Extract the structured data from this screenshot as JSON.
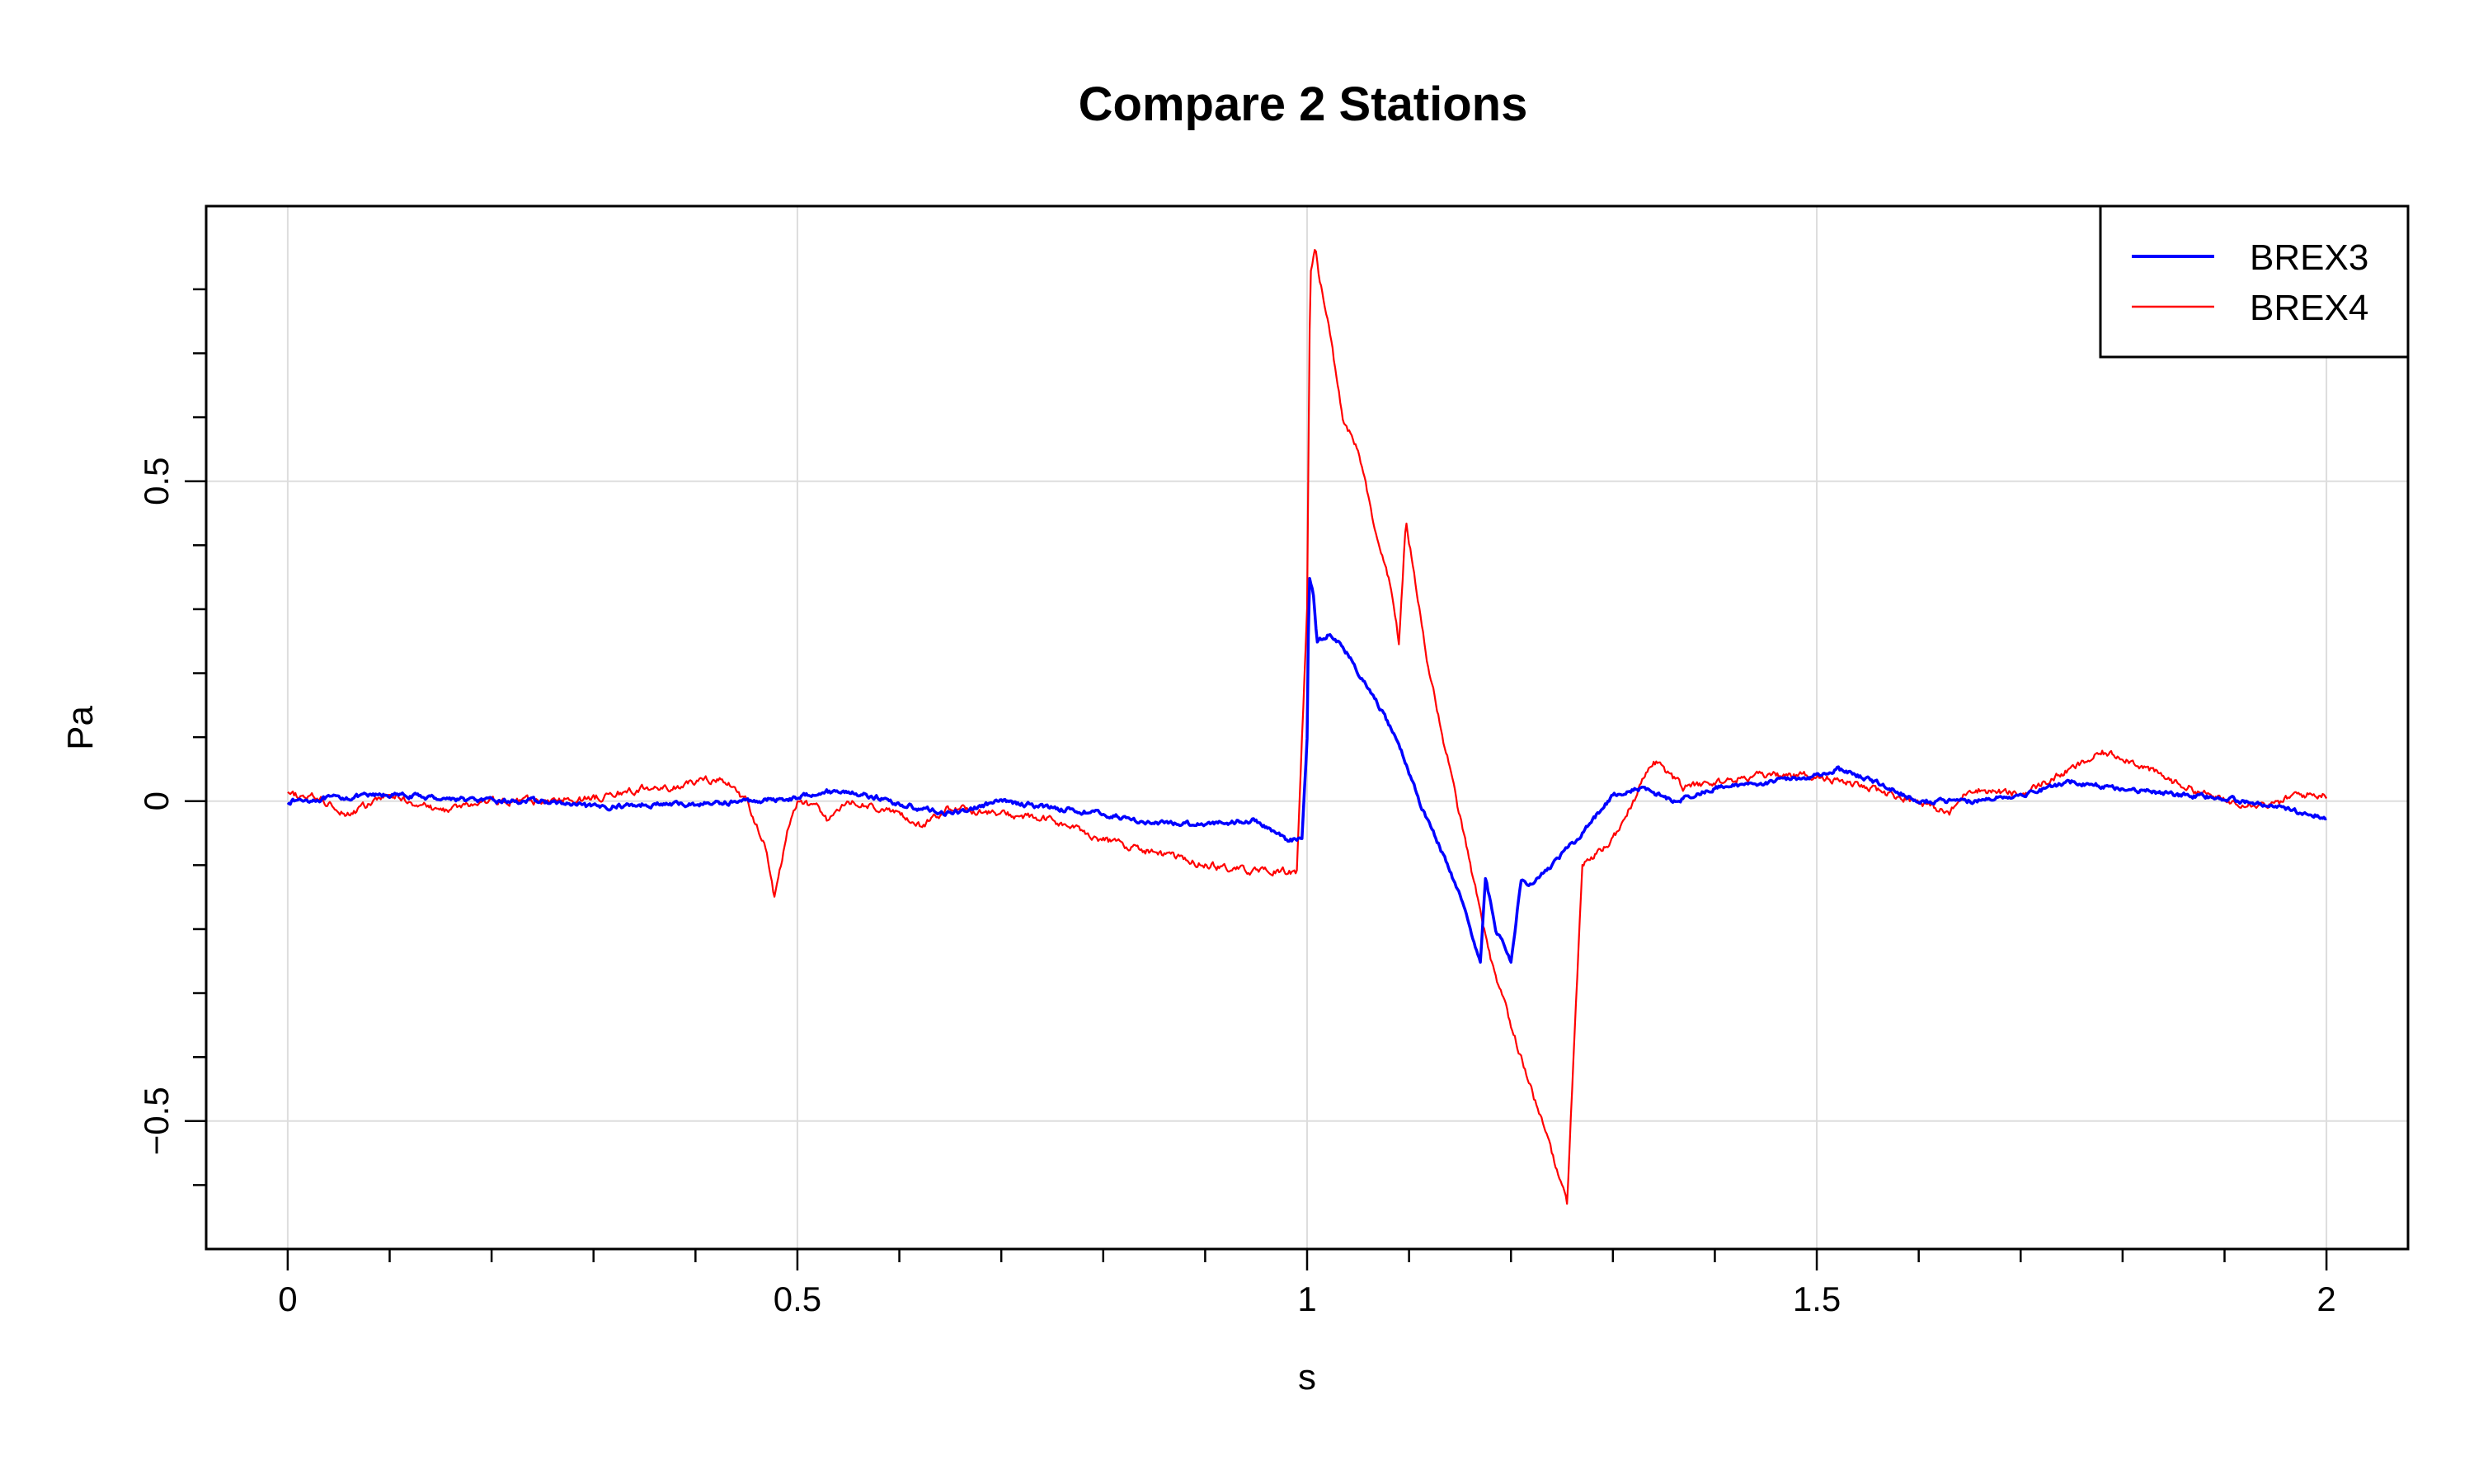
{
  "chart_data": {
    "type": "line",
    "title": "Compare 2 Stations",
    "xlabel": "s",
    "ylabel": "Pa",
    "xlim": [
      -0.08,
      2.08
    ],
    "ylim": [
      -0.7,
      0.93
    ],
    "x_ticks": [
      0,
      0.5,
      1,
      1.5,
      2
    ],
    "x_tick_labels": [
      "0",
      "0.5",
      "1",
      "1.5",
      "2"
    ],
    "y_ticks": [
      -0.5,
      0,
      0.5
    ],
    "y_tick_labels": [
      "−0.5",
      "0",
      "0.5"
    ],
    "grid": true,
    "legend_position": "top-right",
    "series": [
      {
        "name": "BREX3",
        "color": "#0000ff",
        "points": [
          [
            0,
            0.0
          ],
          [
            0.05,
            0.005
          ],
          [
            0.1,
            0.01
          ],
          [
            0.15,
            0.005
          ],
          [
            0.2,
            0.0
          ],
          [
            0.25,
            0.0
          ],
          [
            0.3,
            -0.01
          ],
          [
            0.35,
            -0.005
          ],
          [
            0.4,
            -0.005
          ],
          [
            0.45,
            0.0
          ],
          [
            0.5,
            0.005
          ],
          [
            0.52,
            0.015
          ],
          [
            0.55,
            0.015
          ],
          [
            0.58,
            0.005
          ],
          [
            0.6,
            -0.005
          ],
          [
            0.65,
            -0.02
          ],
          [
            0.7,
            0.0
          ],
          [
            0.75,
            -0.01
          ],
          [
            0.8,
            -0.02
          ],
          [
            0.85,
            -0.035
          ],
          [
            0.9,
            -0.035
          ],
          [
            0.95,
            -0.03
          ],
          [
            0.98,
            -0.06
          ],
          [
            0.995,
            -0.06
          ],
          [
            1.0,
            0.1
          ],
          [
            1.002,
            0.35
          ],
          [
            1.006,
            0.33
          ],
          [
            1.01,
            0.25
          ],
          [
            1.02,
            0.26
          ],
          [
            1.03,
            0.25
          ],
          [
            1.04,
            0.23
          ],
          [
            1.05,
            0.2
          ],
          [
            1.07,
            0.15
          ],
          [
            1.09,
            0.09
          ],
          [
            1.11,
            0.0
          ],
          [
            1.13,
            -0.07
          ],
          [
            1.15,
            -0.15
          ],
          [
            1.17,
            -0.25
          ],
          [
            1.175,
            -0.12
          ],
          [
            1.185,
            -0.2
          ],
          [
            1.2,
            -0.25
          ],
          [
            1.21,
            -0.12
          ],
          [
            1.22,
            -0.13
          ],
          [
            1.24,
            -0.1
          ],
          [
            1.27,
            -0.05
          ],
          [
            1.3,
            0.01
          ],
          [
            1.33,
            0.02
          ],
          [
            1.36,
            0.0
          ],
          [
            1.4,
            0.02
          ],
          [
            1.45,
            0.03
          ],
          [
            1.5,
            0.04
          ],
          [
            1.52,
            0.05
          ],
          [
            1.55,
            0.035
          ],
          [
            1.6,
            0.0
          ],
          [
            1.65,
            0.0
          ],
          [
            1.7,
            0.01
          ],
          [
            1.75,
            0.03
          ],
          [
            1.8,
            0.02
          ],
          [
            1.85,
            0.01
          ],
          [
            1.9,
            0.005
          ],
          [
            1.95,
            -0.01
          ],
          [
            2.0,
            -0.025
          ]
        ]
      },
      {
        "name": "BREX4",
        "color": "#ff0000",
        "points": [
          [
            0,
            0.01
          ],
          [
            0.03,
            0.005
          ],
          [
            0.06,
            -0.02
          ],
          [
            0.1,
            0.01
          ],
          [
            0.15,
            -0.015
          ],
          [
            0.2,
            0.0
          ],
          [
            0.25,
            0.0
          ],
          [
            0.3,
            0.005
          ],
          [
            0.35,
            0.02
          ],
          [
            0.38,
            0.02
          ],
          [
            0.41,
            0.035
          ],
          [
            0.43,
            0.03
          ],
          [
            0.45,
            0.0
          ],
          [
            0.47,
            -0.08
          ],
          [
            0.477,
            -0.15
          ],
          [
            0.49,
            -0.05
          ],
          [
            0.5,
            0.0
          ],
          [
            0.52,
            -0.01
          ],
          [
            0.53,
            -0.03
          ],
          [
            0.55,
            0.0
          ],
          [
            0.6,
            -0.02
          ],
          [
            0.62,
            -0.04
          ],
          [
            0.65,
            -0.01
          ],
          [
            0.7,
            -0.02
          ],
          [
            0.75,
            -0.03
          ],
          [
            0.8,
            -0.06
          ],
          [
            0.85,
            -0.08
          ],
          [
            0.9,
            -0.1
          ],
          [
            0.95,
            -0.11
          ],
          [
            0.99,
            -0.11
          ],
          [
            1.0,
            0.3
          ],
          [
            1.003,
            0.82
          ],
          [
            1.008,
            0.87
          ],
          [
            1.012,
            0.82
          ],
          [
            1.02,
            0.75
          ],
          [
            1.035,
            0.6
          ],
          [
            1.05,
            0.55
          ],
          [
            1.07,
            0.4
          ],
          [
            1.08,
            0.35
          ],
          [
            1.09,
            0.25
          ],
          [
            1.097,
            0.44
          ],
          [
            1.11,
            0.3
          ],
          [
            1.12,
            0.2
          ],
          [
            1.14,
            0.05
          ],
          [
            1.16,
            -0.1
          ],
          [
            1.18,
            -0.25
          ],
          [
            1.2,
            -0.35
          ],
          [
            1.22,
            -0.45
          ],
          [
            1.24,
            -0.55
          ],
          [
            1.255,
            -0.63
          ],
          [
            1.26,
            -0.45
          ],
          [
            1.27,
            -0.1
          ],
          [
            1.28,
            -0.09
          ],
          [
            1.3,
            -0.06
          ],
          [
            1.32,
            0.0
          ],
          [
            1.34,
            0.065
          ],
          [
            1.37,
            0.02
          ],
          [
            1.4,
            0.03
          ],
          [
            1.45,
            0.04
          ],
          [
            1.5,
            0.04
          ],
          [
            1.55,
            0.02
          ],
          [
            1.6,
            0.0
          ],
          [
            1.63,
            -0.02
          ],
          [
            1.65,
            0.02
          ],
          [
            1.7,
            0.01
          ],
          [
            1.75,
            0.05
          ],
          [
            1.78,
            0.075
          ],
          [
            1.8,
            0.07
          ],
          [
            1.85,
            0.03
          ],
          [
            1.9,
            0.0
          ],
          [
            1.95,
            -0.005
          ],
          [
            1.97,
            0.01
          ],
          [
            2.0,
            0.01
          ]
        ]
      }
    ]
  }
}
